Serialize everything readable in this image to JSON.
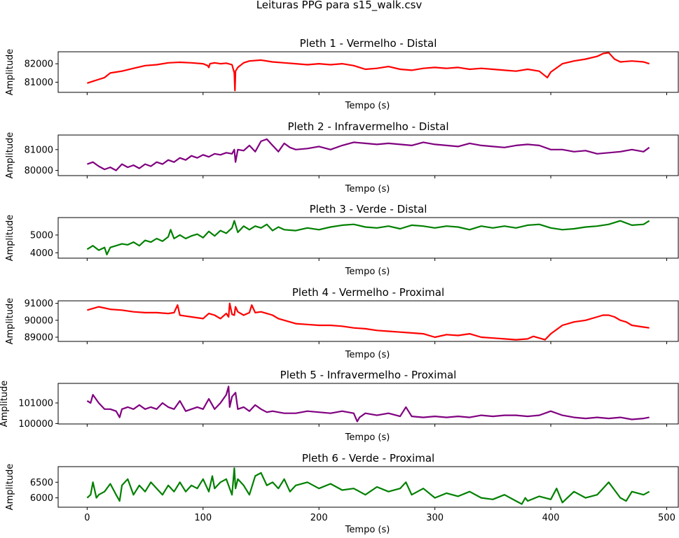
{
  "figure": {
    "suptitle": "Leituras PPG para s15_walk.csv"
  },
  "chart_data": [
    {
      "type": "line",
      "title": "Pleth 1 - Vermelho - Distal",
      "xlabel": "Tempo (s)",
      "ylabel": "Amplitude",
      "color": "#ff0000",
      "xlim": [
        -25,
        510
      ],
      "ylim": [
        80450,
        82650
      ],
      "yticks": [
        81000,
        82000
      ],
      "xticks": [
        0,
        100,
        200,
        300,
        400,
        500
      ],
      "show_xticklabels": false,
      "grid": false,
      "series": [
        {
          "x": [
            0,
            5,
            10,
            15,
            20,
            25,
            30,
            40,
            50,
            60,
            70,
            80,
            90,
            100,
            104,
            105,
            106,
            110,
            115,
            120,
            125,
            127,
            127.5,
            128,
            130,
            135,
            140,
            150,
            160,
            170,
            180,
            190,
            200,
            210,
            220,
            230,
            240,
            250,
            260,
            270,
            280,
            290,
            300,
            310,
            320,
            330,
            340,
            350,
            360,
            370,
            380,
            390,
            395,
            397,
            400,
            410,
            420,
            430,
            440,
            445,
            450,
            455,
            460,
            470,
            480,
            485
          ],
          "y": [
            80950,
            81050,
            81150,
            81250,
            81500,
            81550,
            81600,
            81750,
            81900,
            81950,
            82050,
            82080,
            82050,
            82000,
            81900,
            81800,
            82000,
            82050,
            82000,
            82030,
            81950,
            81500,
            80550,
            81600,
            81800,
            82050,
            82150,
            82200,
            82100,
            82050,
            82000,
            81950,
            82000,
            81950,
            82000,
            81900,
            81700,
            81750,
            81850,
            81700,
            81650,
            81750,
            81800,
            81750,
            81800,
            81700,
            81750,
            81700,
            81650,
            81600,
            81700,
            81600,
            81350,
            81250,
            81550,
            82000,
            82150,
            82250,
            82400,
            82550,
            82600,
            82250,
            82100,
            82150,
            82100,
            82000
          ]
        }
      ]
    },
    {
      "type": "line",
      "title": "Pleth 2 - Infravermelho - Distal",
      "xlabel": "Tempo (s)",
      "ylabel": "Amplitude",
      "color": "#800080",
      "xlim": [
        -25,
        510
      ],
      "ylim": [
        79750,
        81700
      ],
      "yticks": [
        80000,
        81000
      ],
      "xticks": [
        0,
        100,
        200,
        300,
        400,
        500
      ],
      "show_xticklabels": false,
      "grid": false,
      "series": [
        {
          "x": [
            0,
            5,
            10,
            15,
            20,
            25,
            30,
            35,
            40,
            45,
            50,
            55,
            60,
            65,
            70,
            75,
            80,
            85,
            90,
            95,
            100,
            105,
            110,
            115,
            120,
            125,
            127,
            128,
            130,
            135,
            140,
            145,
            150,
            155,
            160,
            165,
            170,
            175,
            180,
            190,
            200,
            210,
            220,
            230,
            240,
            250,
            260,
            270,
            280,
            290,
            300,
            310,
            320,
            330,
            340,
            350,
            360,
            370,
            380,
            390,
            400,
            410,
            420,
            430,
            440,
            450,
            460,
            470,
            480,
            485
          ],
          "y": [
            80300,
            80400,
            80200,
            80050,
            80150,
            80000,
            80300,
            80150,
            80250,
            80100,
            80300,
            80200,
            80400,
            80300,
            80500,
            80400,
            80600,
            80500,
            80700,
            80600,
            80750,
            80650,
            80800,
            80750,
            80850,
            80800,
            81000,
            80400,
            81000,
            80950,
            81200,
            80900,
            81400,
            81500,
            81200,
            80900,
            81300,
            81100,
            81000,
            81050,
            81150,
            81000,
            81200,
            81350,
            81300,
            81250,
            81300,
            81250,
            81200,
            81350,
            81250,
            81200,
            81150,
            81300,
            81200,
            81150,
            81100,
            81200,
            81250,
            81200,
            81000,
            81000,
            80900,
            80950,
            80800,
            80850,
            80900,
            81000,
            80900,
            81100
          ]
        }
      ]
    },
    {
      "type": "line",
      "title": "Pleth 3 - Verde - Distal",
      "xlabel": "Tempo (s)",
      "ylabel": "Amplitude",
      "color": "#008000",
      "xlim": [
        -25,
        510
      ],
      "ylim": [
        3700,
        5980
      ],
      "yticks": [
        4000,
        5000
      ],
      "xticks": [
        0,
        100,
        200,
        300,
        400,
        500
      ],
      "show_xticklabels": false,
      "grid": false,
      "series": [
        {
          "x": [
            0,
            5,
            10,
            15,
            17,
            20,
            25,
            30,
            35,
            40,
            45,
            50,
            55,
            60,
            65,
            70,
            72,
            75,
            80,
            85,
            90,
            95,
            100,
            105,
            110,
            115,
            120,
            125,
            127,
            130,
            135,
            140,
            145,
            150,
            155,
            160,
            165,
            170,
            180,
            190,
            200,
            210,
            220,
            230,
            240,
            250,
            260,
            270,
            280,
            290,
            300,
            310,
            320,
            330,
            340,
            350,
            360,
            370,
            380,
            390,
            400,
            410,
            420,
            430,
            440,
            450,
            460,
            470,
            480,
            485
          ],
          "y": [
            4200,
            4400,
            4150,
            4300,
            3900,
            4300,
            4400,
            4500,
            4450,
            4600,
            4400,
            4700,
            4600,
            4800,
            4650,
            4900,
            5300,
            4800,
            5000,
            4800,
            4950,
            5050,
            4850,
            5200,
            4950,
            5250,
            5100,
            5400,
            5800,
            5150,
            5500,
            5300,
            5500,
            5400,
            5600,
            5250,
            5450,
            5300,
            5250,
            5400,
            5300,
            5450,
            5550,
            5600,
            5450,
            5400,
            5500,
            5350,
            5550,
            5500,
            5400,
            5500,
            5450,
            5300,
            5500,
            5400,
            5500,
            5400,
            5550,
            5600,
            5400,
            5300,
            5350,
            5450,
            5500,
            5600,
            5800,
            5550,
            5600,
            5800
          ]
        }
      ]
    },
    {
      "type": "line",
      "title": "Pleth 4 - Vermelho - Proximal",
      "xlabel": "Tempo (s)",
      "ylabel": "Amplitude",
      "color": "#ff0000",
      "xlim": [
        -25,
        510
      ],
      "ylim": [
        88750,
        91150
      ],
      "yticks": [
        89000,
        90000,
        91000
      ],
      "xticks": [
        0,
        100,
        200,
        300,
        400,
        500
      ],
      "show_xticklabels": false,
      "grid": false,
      "series": [
        {
          "x": [
            0,
            5,
            10,
            20,
            30,
            40,
            50,
            60,
            70,
            75,
            78,
            80,
            85,
            90,
            100,
            105,
            110,
            115,
            120,
            122,
            123,
            125,
            127,
            128,
            130,
            135,
            140,
            142,
            145,
            150,
            155,
            160,
            165,
            170,
            180,
            190,
            200,
            210,
            220,
            230,
            240,
            250,
            260,
            270,
            280,
            290,
            300,
            310,
            320,
            330,
            340,
            350,
            360,
            370,
            380,
            385,
            390,
            395,
            400,
            410,
            420,
            430,
            440,
            445,
            450,
            455,
            460,
            465,
            470,
            480,
            485
          ],
          "y": [
            90600,
            90700,
            90800,
            90650,
            90600,
            90500,
            90450,
            90450,
            90400,
            90450,
            90900,
            90300,
            90250,
            90200,
            90100,
            90400,
            90300,
            90100,
            90400,
            90200,
            91000,
            90350,
            90300,
            90800,
            90500,
            90300,
            90450,
            90900,
            90450,
            90500,
            90400,
            90300,
            90100,
            90000,
            89800,
            89750,
            89700,
            89700,
            89650,
            89550,
            89500,
            89400,
            89350,
            89300,
            89250,
            89200,
            89000,
            89150,
            89100,
            89200,
            89000,
            88950,
            88900,
            88850,
            88900,
            89050,
            88950,
            88850,
            89200,
            89700,
            89900,
            90000,
            90200,
            90300,
            90300,
            90200,
            90000,
            89900,
            89700,
            89600,
            89550
          ]
        }
      ]
    },
    {
      "type": "line",
      "title": "Pleth 5 - Infravermelho - Proximal",
      "xlabel": "Tempo (s)",
      "ylabel": "Amplitude",
      "color": "#800080",
      "xlim": [
        -25,
        510
      ],
      "ylim": [
        99980,
        101950
      ],
      "yticks": [
        100000,
        101000
      ],
      "xticks": [
        0,
        100,
        200,
        300,
        400,
        500
      ],
      "show_xticklabels": false,
      "grid": false,
      "series": [
        {
          "x": [
            0,
            3,
            5,
            10,
            15,
            20,
            25,
            28,
            30,
            35,
            40,
            45,
            50,
            55,
            60,
            65,
            70,
            75,
            80,
            85,
            90,
            95,
            100,
            105,
            110,
            115,
            120,
            122,
            123,
            125,
            128,
            130,
            135,
            140,
            145,
            150,
            155,
            160,
            170,
            180,
            190,
            200,
            210,
            220,
            230,
            233,
            235,
            240,
            250,
            260,
            270,
            275,
            280,
            290,
            300,
            310,
            320,
            330,
            340,
            350,
            360,
            370,
            380,
            390,
            400,
            410,
            420,
            430,
            440,
            450,
            460,
            470,
            480,
            485
          ],
          "y": [
            101100,
            101000,
            101400,
            101000,
            100700,
            100700,
            100600,
            100300,
            100700,
            100800,
            100700,
            100900,
            100700,
            100800,
            100700,
            101000,
            100800,
            100700,
            101100,
            100600,
            100700,
            100800,
            100700,
            101200,
            100700,
            101000,
            101400,
            101800,
            100800,
            101300,
            101500,
            100700,
            100800,
            100600,
            100900,
            100700,
            100550,
            100600,
            100500,
            100500,
            100600,
            100550,
            100500,
            100600,
            100500,
            100100,
            100300,
            100500,
            100400,
            100500,
            100350,
            100800,
            100350,
            100300,
            100350,
            100300,
            100350,
            100300,
            100400,
            100350,
            100400,
            100400,
            100350,
            100400,
            100600,
            100400,
            100300,
            100250,
            100300,
            100250,
            100300,
            100200,
            100250,
            100300
          ]
        }
      ]
    },
    {
      "type": "line",
      "title": "Pleth 6 - Verde - Proximal",
      "xlabel": "Tempo (s)",
      "ylabel": "Amplitude",
      "color": "#008000",
      "xlim": [
        -25,
        510
      ],
      "ylim": [
        5700,
        7000
      ],
      "yticks": [
        6000,
        6500
      ],
      "xticks": [
        0,
        100,
        200,
        300,
        400,
        500
      ],
      "show_xticklabels": false,
      "grid": false,
      "series": [
        {
          "x": [
            0,
            3,
            5,
            8,
            10,
            15,
            20,
            25,
            28,
            30,
            35,
            40,
            45,
            50,
            55,
            60,
            65,
            70,
            75,
            80,
            85,
            90,
            95,
            100,
            105,
            108,
            110,
            115,
            120,
            125,
            127,
            128,
            130,
            135,
            140,
            145,
            150,
            155,
            160,
            165,
            170,
            175,
            180,
            190,
            200,
            210,
            220,
            230,
            240,
            250,
            260,
            270,
            275,
            280,
            290,
            300,
            310,
            320,
            330,
            340,
            350,
            360,
            370,
            375,
            378,
            380,
            390,
            400,
            405,
            410,
            420,
            430,
            440,
            445,
            450,
            460,
            465,
            470,
            480,
            485
          ],
          "y": [
            6000,
            6100,
            6500,
            6000,
            6100,
            6200,
            6450,
            6100,
            5900,
            6400,
            6600,
            6100,
            6400,
            6200,
            6500,
            6300,
            6100,
            6400,
            6200,
            6500,
            6200,
            6400,
            6300,
            6600,
            6200,
            6700,
            6300,
            6500,
            6600,
            6100,
            6950,
            6300,
            6600,
            6400,
            6100,
            6700,
            6800,
            6400,
            6500,
            6300,
            6600,
            6200,
            6400,
            6500,
            6300,
            6450,
            6250,
            6300,
            6100,
            6350,
            6200,
            6300,
            6500,
            6100,
            6300,
            6000,
            6150,
            6050,
            6200,
            6000,
            5950,
            6100,
            5900,
            5800,
            6000,
            5900,
            6050,
            5950,
            6300,
            5850,
            6200,
            6000,
            6100,
            6300,
            6500,
            6000,
            5900,
            6200,
            6100,
            6200
          ]
        }
      ]
    }
  ]
}
